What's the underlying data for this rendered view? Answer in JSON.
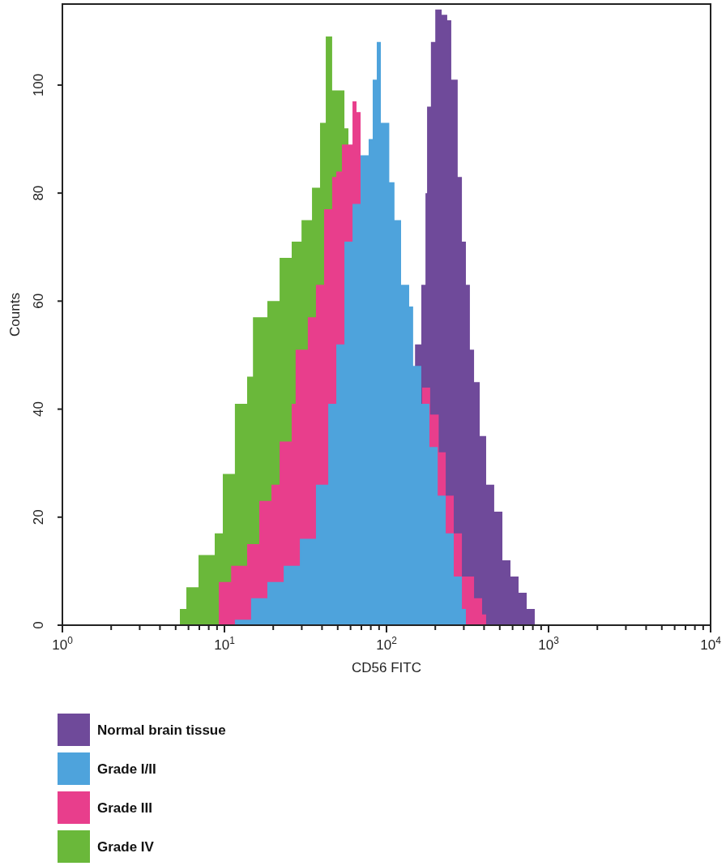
{
  "chart_data": {
    "type": "area",
    "xlabel": "CD56 FITC",
    "ylabel": "Counts",
    "log": "x",
    "xlim": [
      1,
      10000
    ],
    "ylim": [
      0,
      115
    ],
    "xticks": [
      {
        "value": 1,
        "label": "10$^{0}$"
      },
      {
        "value": 2,
        "label": null
      },
      {
        "value": 3,
        "label": null
      },
      {
        "value": 4,
        "label": null
      },
      {
        "value": 5,
        "label": null
      },
      {
        "value": 6,
        "label": null
      },
      {
        "value": 7,
        "label": null
      },
      {
        "value": 8,
        "label": null
      },
      {
        "value": 9,
        "label": null
      },
      {
        "value": 10,
        "label": "10$^{1}$"
      },
      {
        "value": 20,
        "label": null
      },
      {
        "value": 30,
        "label": null
      },
      {
        "value": 40,
        "label": null
      },
      {
        "value": 50,
        "label": null
      },
      {
        "value": 60,
        "label": null
      },
      {
        "value": 70,
        "label": null
      },
      {
        "value": 80,
        "label": null
      },
      {
        "value": 90,
        "label": null
      },
      {
        "value": 100,
        "label": "10$^{2}$"
      },
      {
        "value": 200,
        "label": null
      },
      {
        "value": 300,
        "label": null
      },
      {
        "value": 400,
        "label": null
      },
      {
        "value": 500,
        "label": null
      },
      {
        "value": 600,
        "label": null
      },
      {
        "value": 700,
        "label": null
      },
      {
        "value": 800,
        "label": null
      },
      {
        "value": 900,
        "label": null
      },
      {
        "value": 1000,
        "label": "10$^{3}$"
      },
      {
        "value": 2000,
        "label": null
      },
      {
        "value": 3000,
        "label": null
      },
      {
        "value": 4000,
        "label": null
      },
      {
        "value": 5000,
        "label": null
      },
      {
        "value": 6000,
        "label": null
      },
      {
        "value": 7000,
        "label": null
      },
      {
        "value": 8000,
        "label": null
      },
      {
        "value": 9000,
        "label": null
      },
      {
        "value": 10000,
        "label": "10$^{4}$"
      }
    ],
    "yticks": [
      0,
      20,
      40,
      60,
      80,
      100
    ],
    "grid": false,
    "legend": "bottom",
    "series": [
      {
        "name": "Normal brain tissue",
        "color": "#6f4a9a",
        "x": [
          150,
          164,
          174,
          178,
          188,
          200,
          219,
          237,
          251,
          275,
          292,
          309,
          327,
          347,
          376,
          412,
          462,
          519,
          582,
          653,
          733,
          822
        ],
        "values": [
          52,
          63,
          80,
          96,
          108,
          114,
          113,
          112,
          101,
          83,
          71,
          63,
          51,
          45,
          35,
          26,
          21,
          12,
          9,
          6,
          3,
          0
        ]
      },
      {
        "name": "Grade I/II",
        "color": "#4ea3dc",
        "x": [
          11.6,
          14.6,
          18.4,
          23.2,
          29.2,
          36.7,
          43.7,
          49.0,
          55.0,
          61.7,
          69.2,
          77.6,
          82.2,
          87.1,
          92.3,
          97.7,
          104,
          112,
          123,
          138,
          146,
          164,
          184,
          207,
          232,
          260,
          292,
          309
        ],
        "values": [
          1,
          5,
          8,
          11,
          16,
          26,
          41,
          52,
          71,
          78,
          87,
          90,
          101,
          108,
          93,
          93,
          82,
          75,
          63,
          59,
          48,
          41,
          33,
          24,
          17,
          9,
          3,
          0
        ]
      },
      {
        "name": "Grade III",
        "color": "#e83e8c",
        "x": [
          9.23,
          11.0,
          13.8,
          16.4,
          19.5,
          21.9,
          26.0,
          27.5,
          32.7,
          36.7,
          41.2,
          46.2,
          49.0,
          53.1,
          61.7,
          65.3,
          69.2,
          73.3,
          166,
          186,
          210,
          232,
          260,
          292,
          347,
          389,
          412
        ],
        "values": [
          8,
          11,
          15,
          23,
          26,
          34,
          41,
          51,
          57,
          63,
          77,
          83,
          84,
          89,
          97,
          95,
          95,
          null,
          44,
          39,
          32,
          24,
          17,
          9,
          5,
          2,
          0
        ]
      },
      {
        "name": "Grade IV",
        "color": "#6ab83a",
        "x": [
          5.31,
          5.82,
          6.92,
          8.71,
          9.77,
          11.6,
          13.8,
          15.0,
          18.4,
          21.9,
          26.0,
          29.9,
          34.7,
          38.9,
          42.2,
          46.2,
          50.1,
          55.0,
          58.2
        ],
        "values": [
          3,
          7,
          13,
          17,
          28,
          41,
          46,
          57,
          60,
          68,
          71,
          75,
          81,
          93,
          109,
          99,
          99,
          92,
          0
        ]
      }
    ]
  }
}
